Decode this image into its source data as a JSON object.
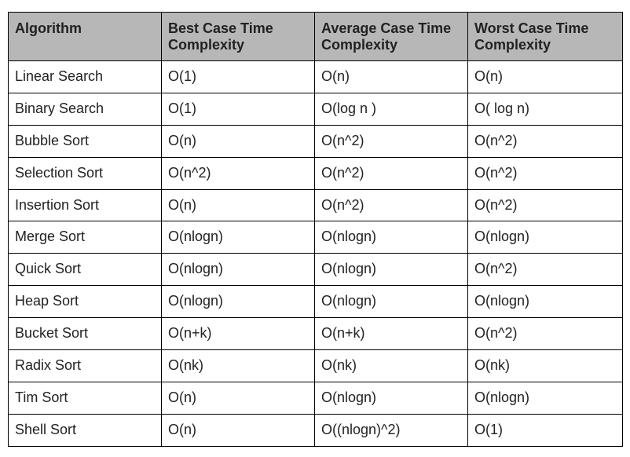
{
  "table": {
    "headers": [
      "Algorithm",
      "Best Case Time Complexity",
      "Average Case Time Complexity",
      "Worst Case Time Complexity"
    ],
    "rows": [
      [
        "Linear Search",
        "O(1)",
        "O(n)",
        "O(n)"
      ],
      [
        "Binary Search",
        "O(1)",
        "O(log n )",
        "O( log n)"
      ],
      [
        "Bubble Sort",
        "O(n)",
        "O(n^2)",
        "O(n^2)"
      ],
      [
        "Selection Sort",
        "O(n^2)",
        "O(n^2)",
        "O(n^2)"
      ],
      [
        "Insertion Sort",
        "O(n)",
        "O(n^2)",
        "O(n^2)"
      ],
      [
        "Merge Sort",
        "O(nlogn)",
        "O(nlogn)",
        "O(nlogn)"
      ],
      [
        "Quick Sort",
        "O(nlogn)",
        "O(nlogn)",
        "O(n^2)"
      ],
      [
        "Heap Sort",
        "O(nlogn)",
        "O(nlogn)",
        "O(nlogn)"
      ],
      [
        "Bucket Sort",
        "O(n+k)",
        "O(n+k)",
        "O(n^2)"
      ],
      [
        "Radix Sort",
        "O(nk)",
        "O(nk)",
        "O(nk)"
      ],
      [
        "Tim Sort",
        "O(n)",
        "O(nlogn)",
        "O(nlogn)"
      ],
      [
        "Shell Sort",
        "O(n)",
        "O((nlogn)^2)",
        "O(1)"
      ]
    ]
  },
  "colors": {
    "header_background": "#b7b7b7",
    "border": "#000000",
    "text": "#222222"
  }
}
